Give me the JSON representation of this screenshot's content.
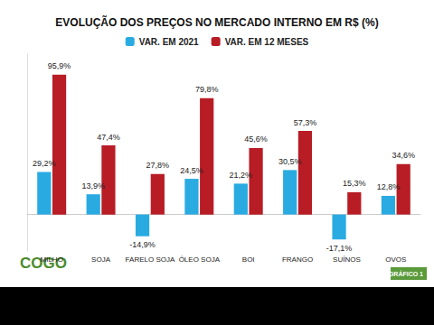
{
  "chart_data": {
    "type": "bar",
    "title": "EVOLUÇÃO DOS PREÇOS NO MERCADO INTERNO EM R$ (%)",
    "categories": [
      "MILHO",
      "SOJA",
      "FARELO SOJA",
      "ÓLEO SOJA",
      "BOI",
      "FRANGO",
      "SUÍNOS",
      "OVOS"
    ],
    "series": [
      {
        "name": "VAR. EM 2021",
        "color": "#29abe2",
        "values": [
          29.2,
          13.9,
          -14.9,
          24.5,
          21.2,
          30.5,
          -17.1,
          12.8
        ],
        "value_labels": [
          "29,2%",
          "13,9%",
          "-14,9%",
          "24,5%",
          "21,2%",
          "30,5%",
          "-17,1%",
          "12,8%"
        ]
      },
      {
        "name": "VAR. EM 12 MESES",
        "color": "#b81c25",
        "values": [
          95.9,
          47.4,
          27.8,
          79.8,
          45.6,
          57.3,
          15.3,
          34.6
        ],
        "value_labels": [
          "95,9%",
          "47,4%",
          "27,8%",
          "79,8%",
          "45,6%",
          "57,3%",
          "15,3%",
          "34,6%"
        ]
      }
    ],
    "ylim": [
      -25,
      110
    ],
    "grid": false,
    "legend": "top",
    "data_labels": true,
    "tick_labels": "x",
    "annotations": [
      "COGO",
      "GRÁFICO 1"
    ]
  }
}
